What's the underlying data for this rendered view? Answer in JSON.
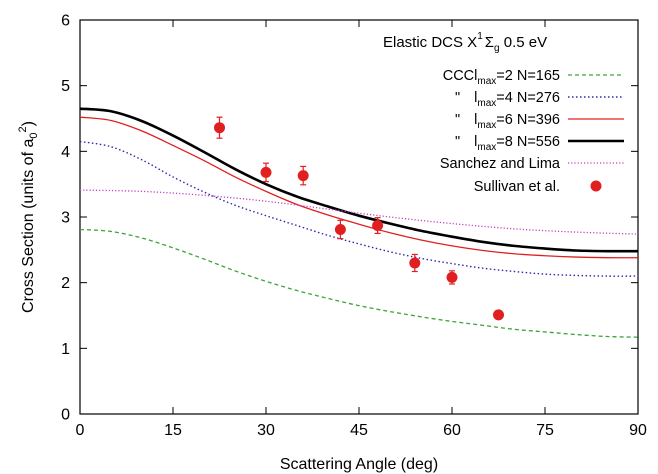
{
  "chart_data": {
    "type": "line",
    "xlabel": "Scattering Angle (deg)",
    "ylabel_main": "Cross Section (units of a",
    "ylabel_sub": "0",
    "ylabel_sup": "2",
    "ylabel_close": ")",
    "xlim": [
      0,
      90
    ],
    "ylim": [
      0,
      6
    ],
    "xticks": [
      0,
      15,
      30,
      45,
      60,
      75,
      90
    ],
    "yticks": [
      0,
      1,
      2,
      3,
      4,
      5,
      6
    ],
    "grid": false,
    "legend_position": "top-right",
    "legend_title": {
      "prefix": "Elastic DCS  X",
      "sup": "1",
      "sigma": "Σ",
      "sub": "g",
      "suffix": " 0.5 eV"
    },
    "series": [
      {
        "legend_prefix": "CCC",
        "legend_l": "l",
        "legend_sub": "max",
        "legend_suffix": "=2 N=165",
        "color": "#3aa63a",
        "dash": "4,3",
        "width": 1.3,
        "x": [
          0,
          5,
          10,
          15,
          20,
          25,
          30,
          35,
          40,
          45,
          50,
          55,
          60,
          65,
          70,
          75,
          80,
          85,
          90
        ],
        "y": [
          2.81,
          2.78,
          2.68,
          2.53,
          2.36,
          2.18,
          2.02,
          1.88,
          1.76,
          1.65,
          1.56,
          1.48,
          1.41,
          1.35,
          1.29,
          1.25,
          1.21,
          1.18,
          1.17
        ]
      },
      {
        "legend_prefix": "\"",
        "legend_l": "l",
        "legend_sub": "max",
        "legend_suffix": "=4 N=276",
        "color": "#2a2ab0",
        "dash": "1.5,2.5",
        "width": 1.4,
        "x": [
          0,
          5,
          10,
          15,
          20,
          25,
          30,
          35,
          40,
          45,
          50,
          55,
          60,
          65,
          70,
          75,
          80,
          85,
          90
        ],
        "y": [
          4.15,
          4.07,
          3.87,
          3.61,
          3.38,
          3.18,
          3.02,
          2.87,
          2.72,
          2.59,
          2.47,
          2.37,
          2.29,
          2.22,
          2.17,
          2.13,
          2.11,
          2.1,
          2.1
        ]
      },
      {
        "legend_prefix": "\"",
        "legend_l": "l",
        "legend_sub": "max",
        "legend_suffix": "=6 N=396",
        "color": "#e02020",
        "dash": "",
        "width": 1.3,
        "x": [
          0,
          5,
          10,
          15,
          20,
          25,
          30,
          35,
          40,
          45,
          50,
          55,
          60,
          65,
          70,
          75,
          80,
          85,
          90
        ],
        "y": [
          4.52,
          4.47,
          4.31,
          4.09,
          3.86,
          3.61,
          3.39,
          3.19,
          3.03,
          2.89,
          2.76,
          2.65,
          2.56,
          2.49,
          2.44,
          2.41,
          2.39,
          2.38,
          2.38
        ]
      },
      {
        "legend_prefix": "\"",
        "legend_l": "l",
        "legend_sub": "max",
        "legend_suffix": "=8 N=556",
        "color": "#000000",
        "dash": "",
        "width": 2.6,
        "x": [
          0,
          5,
          10,
          15,
          20,
          25,
          30,
          35,
          40,
          45,
          50,
          55,
          60,
          65,
          70,
          75,
          80,
          85,
          90
        ],
        "y": [
          4.65,
          4.61,
          4.46,
          4.24,
          3.99,
          3.73,
          3.5,
          3.31,
          3.16,
          3.02,
          2.9,
          2.79,
          2.7,
          2.62,
          2.56,
          2.52,
          2.49,
          2.48,
          2.48
        ]
      },
      {
        "legend_prefix": "Sanchez and Lima",
        "legend_l": "",
        "legend_sub": "",
        "legend_suffix": "",
        "color": "#c040c0",
        "dash": "1.2,2",
        "width": 1.3,
        "x": [
          0,
          10,
          20,
          30,
          40,
          50,
          60,
          70,
          80,
          90
        ],
        "y": [
          3.41,
          3.39,
          3.33,
          3.24,
          3.12,
          3.0,
          2.9,
          2.82,
          2.77,
          2.74
        ]
      }
    ],
    "points": {
      "name": "Sullivan et al.",
      "color": "#e02020",
      "x": [
        22.5,
        30,
        36,
        42,
        48,
        54,
        60,
        67.5
      ],
      "y": [
        4.36,
        3.68,
        3.63,
        2.81,
        2.87,
        2.3,
        2.08,
        1.51
      ],
      "err": [
        0.16,
        0.14,
        0.14,
        0.14,
        0.12,
        0.13,
        0.1,
        0.05
      ]
    }
  }
}
